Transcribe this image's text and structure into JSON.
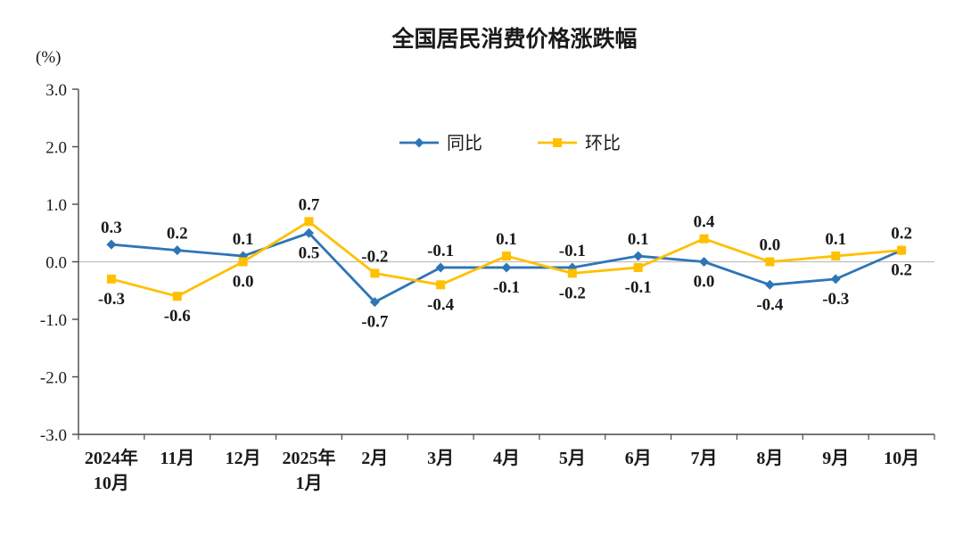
{
  "chart_data": {
    "type": "line",
    "title": "全国居民消费价格涨跌幅",
    "unit_label": "(%)",
    "categories": [
      "2024年\n10月",
      "11月",
      "12月",
      "2025年\n1月",
      "2月",
      "3月",
      "4月",
      "5月",
      "6月",
      "7月",
      "8月",
      "9月",
      "10月"
    ],
    "series": [
      {
        "name": "同比",
        "color": "#2e75b6",
        "marker": "diamond",
        "values": [
          0.3,
          0.2,
          0.1,
          0.5,
          -0.7,
          -0.1,
          -0.1,
          -0.1,
          0.1,
          0.0,
          -0.4,
          -0.3,
          0.2
        ]
      },
      {
        "name": "环比",
        "color": "#ffc000",
        "marker": "square",
        "values": [
          -0.3,
          -0.6,
          0.0,
          0.7,
          -0.2,
          -0.4,
          0.1,
          -0.2,
          -0.1,
          0.4,
          0.0,
          0.1,
          0.2
        ]
      }
    ],
    "ylim": [
      -3.0,
      3.0
    ],
    "ytick_labels": [
      "3.0",
      "2.0",
      "1.0",
      "0.0",
      "-1.0",
      "-2.0",
      "-3.0"
    ],
    "grid": "zero-line-only",
    "legend_position": "top-center-inside",
    "axis_color": "#4a4a4a",
    "zero_line_color": "#bfbfbf",
    "text_color": "#1a1a1a",
    "background": "#ffffff"
  }
}
